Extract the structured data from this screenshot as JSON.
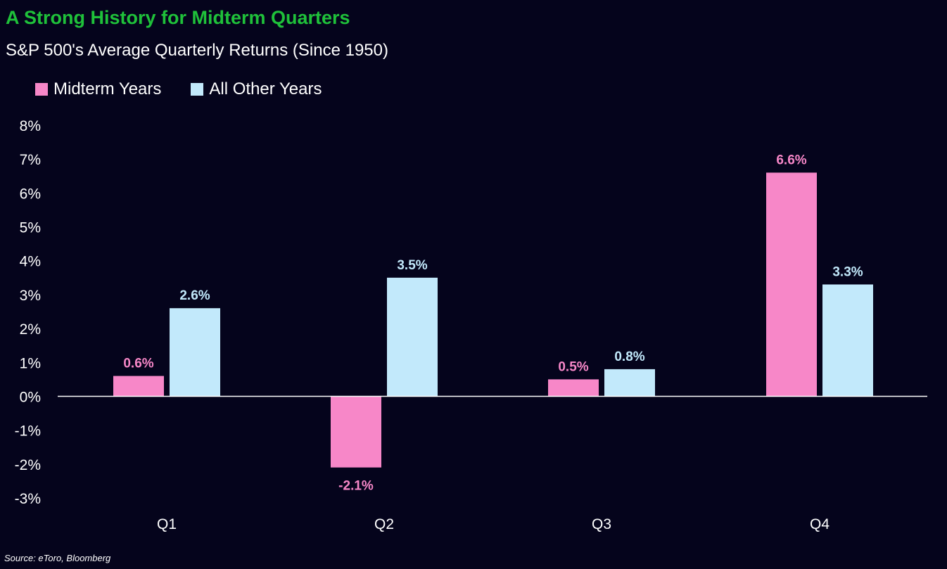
{
  "title": "A Strong History for Midterm Quarters",
  "subtitle": "S&P 500's Average Quarterly Returns (Since 1950)",
  "source": "Source: eToro, Bloomberg",
  "colors": {
    "background": "#05041c",
    "title": "#1fc13a",
    "midterm": "#f787c8",
    "other": "#c2e9fb",
    "axis": "#ffffff"
  },
  "chart_data": {
    "type": "bar",
    "title": "A Strong History for Midterm Quarters",
    "subtitle": "S&P 500's Average Quarterly Returns (Since 1950)",
    "categories": [
      "Q1",
      "Q2",
      "Q3",
      "Q4"
    ],
    "series": [
      {
        "name": "Midterm Years",
        "values": [
          0.6,
          -2.1,
          0.5,
          6.6
        ],
        "labels": [
          "0.6%",
          "-2.1%",
          "0.5%",
          "6.6%"
        ]
      },
      {
        "name": "All Other Years",
        "values": [
          2.6,
          3.5,
          0.8,
          3.3
        ],
        "labels": [
          "2.6%",
          "3.5%",
          "0.8%",
          "3.3%"
        ]
      }
    ],
    "yticks": [
      "8%",
      "7%",
      "6%",
      "5%",
      "4%",
      "3%",
      "2%",
      "1%",
      "0%",
      "-1%",
      "-2%",
      "-3%"
    ],
    "ylim": [
      -3,
      8
    ],
    "xlabel": "",
    "ylabel": "",
    "grid": false,
    "legend": "top-left"
  }
}
